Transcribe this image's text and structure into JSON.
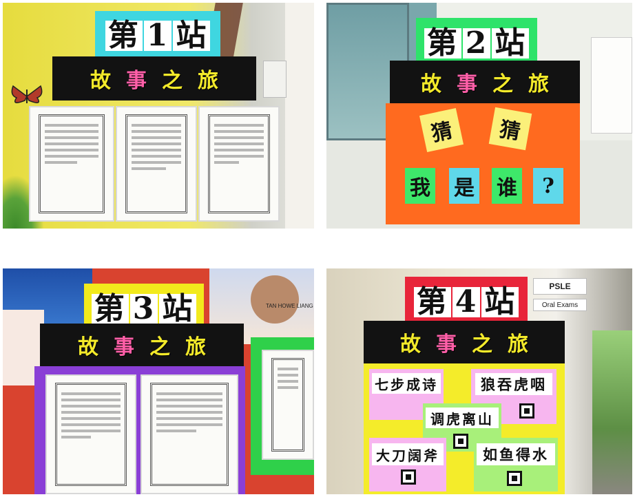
{
  "photos": [
    {
      "station": {
        "prefix": "第",
        "number": "1",
        "suffix": "站"
      },
      "banner": [
        "故",
        "事",
        "之",
        "旅"
      ]
    },
    {
      "station": {
        "prefix": "第",
        "number": "2",
        "suffix": "站"
      },
      "banner": [
        "故",
        "事",
        "之",
        "旅"
      ],
      "guess_cards": [
        "猜",
        "猜"
      ],
      "question_cards": [
        "我",
        "是",
        "谁",
        "?"
      ]
    },
    {
      "station": {
        "prefix": "第",
        "number": "3",
        "suffix": "站"
      },
      "banner": [
        "故",
        "事",
        "之",
        "旅"
      ],
      "poster_name": "TAN HOWE LIANG"
    },
    {
      "station": {
        "prefix": "第",
        "number": "4",
        "suffix": "站"
      },
      "banner": [
        "故",
        "事",
        "之",
        "旅"
      ],
      "idioms": [
        "七步成诗",
        "狼吞虎咽",
        "调虎离山",
        "大刀阔斧",
        "如鱼得水"
      ],
      "wall_signs": [
        "PSLE",
        "Oral Exams"
      ]
    }
  ],
  "colors": {
    "banner_char_1": "#f3ea2a",
    "banner_char_2": "#ff5fa8",
    "banner_char_3": "#f3ea2a",
    "banner_char_4": "#f3ea2a",
    "station1_frame": "#3fd6e0",
    "station2_frame": "#2ee36a",
    "station3_frame": "#f2ea1c",
    "station4_frame": "#e8253a"
  }
}
